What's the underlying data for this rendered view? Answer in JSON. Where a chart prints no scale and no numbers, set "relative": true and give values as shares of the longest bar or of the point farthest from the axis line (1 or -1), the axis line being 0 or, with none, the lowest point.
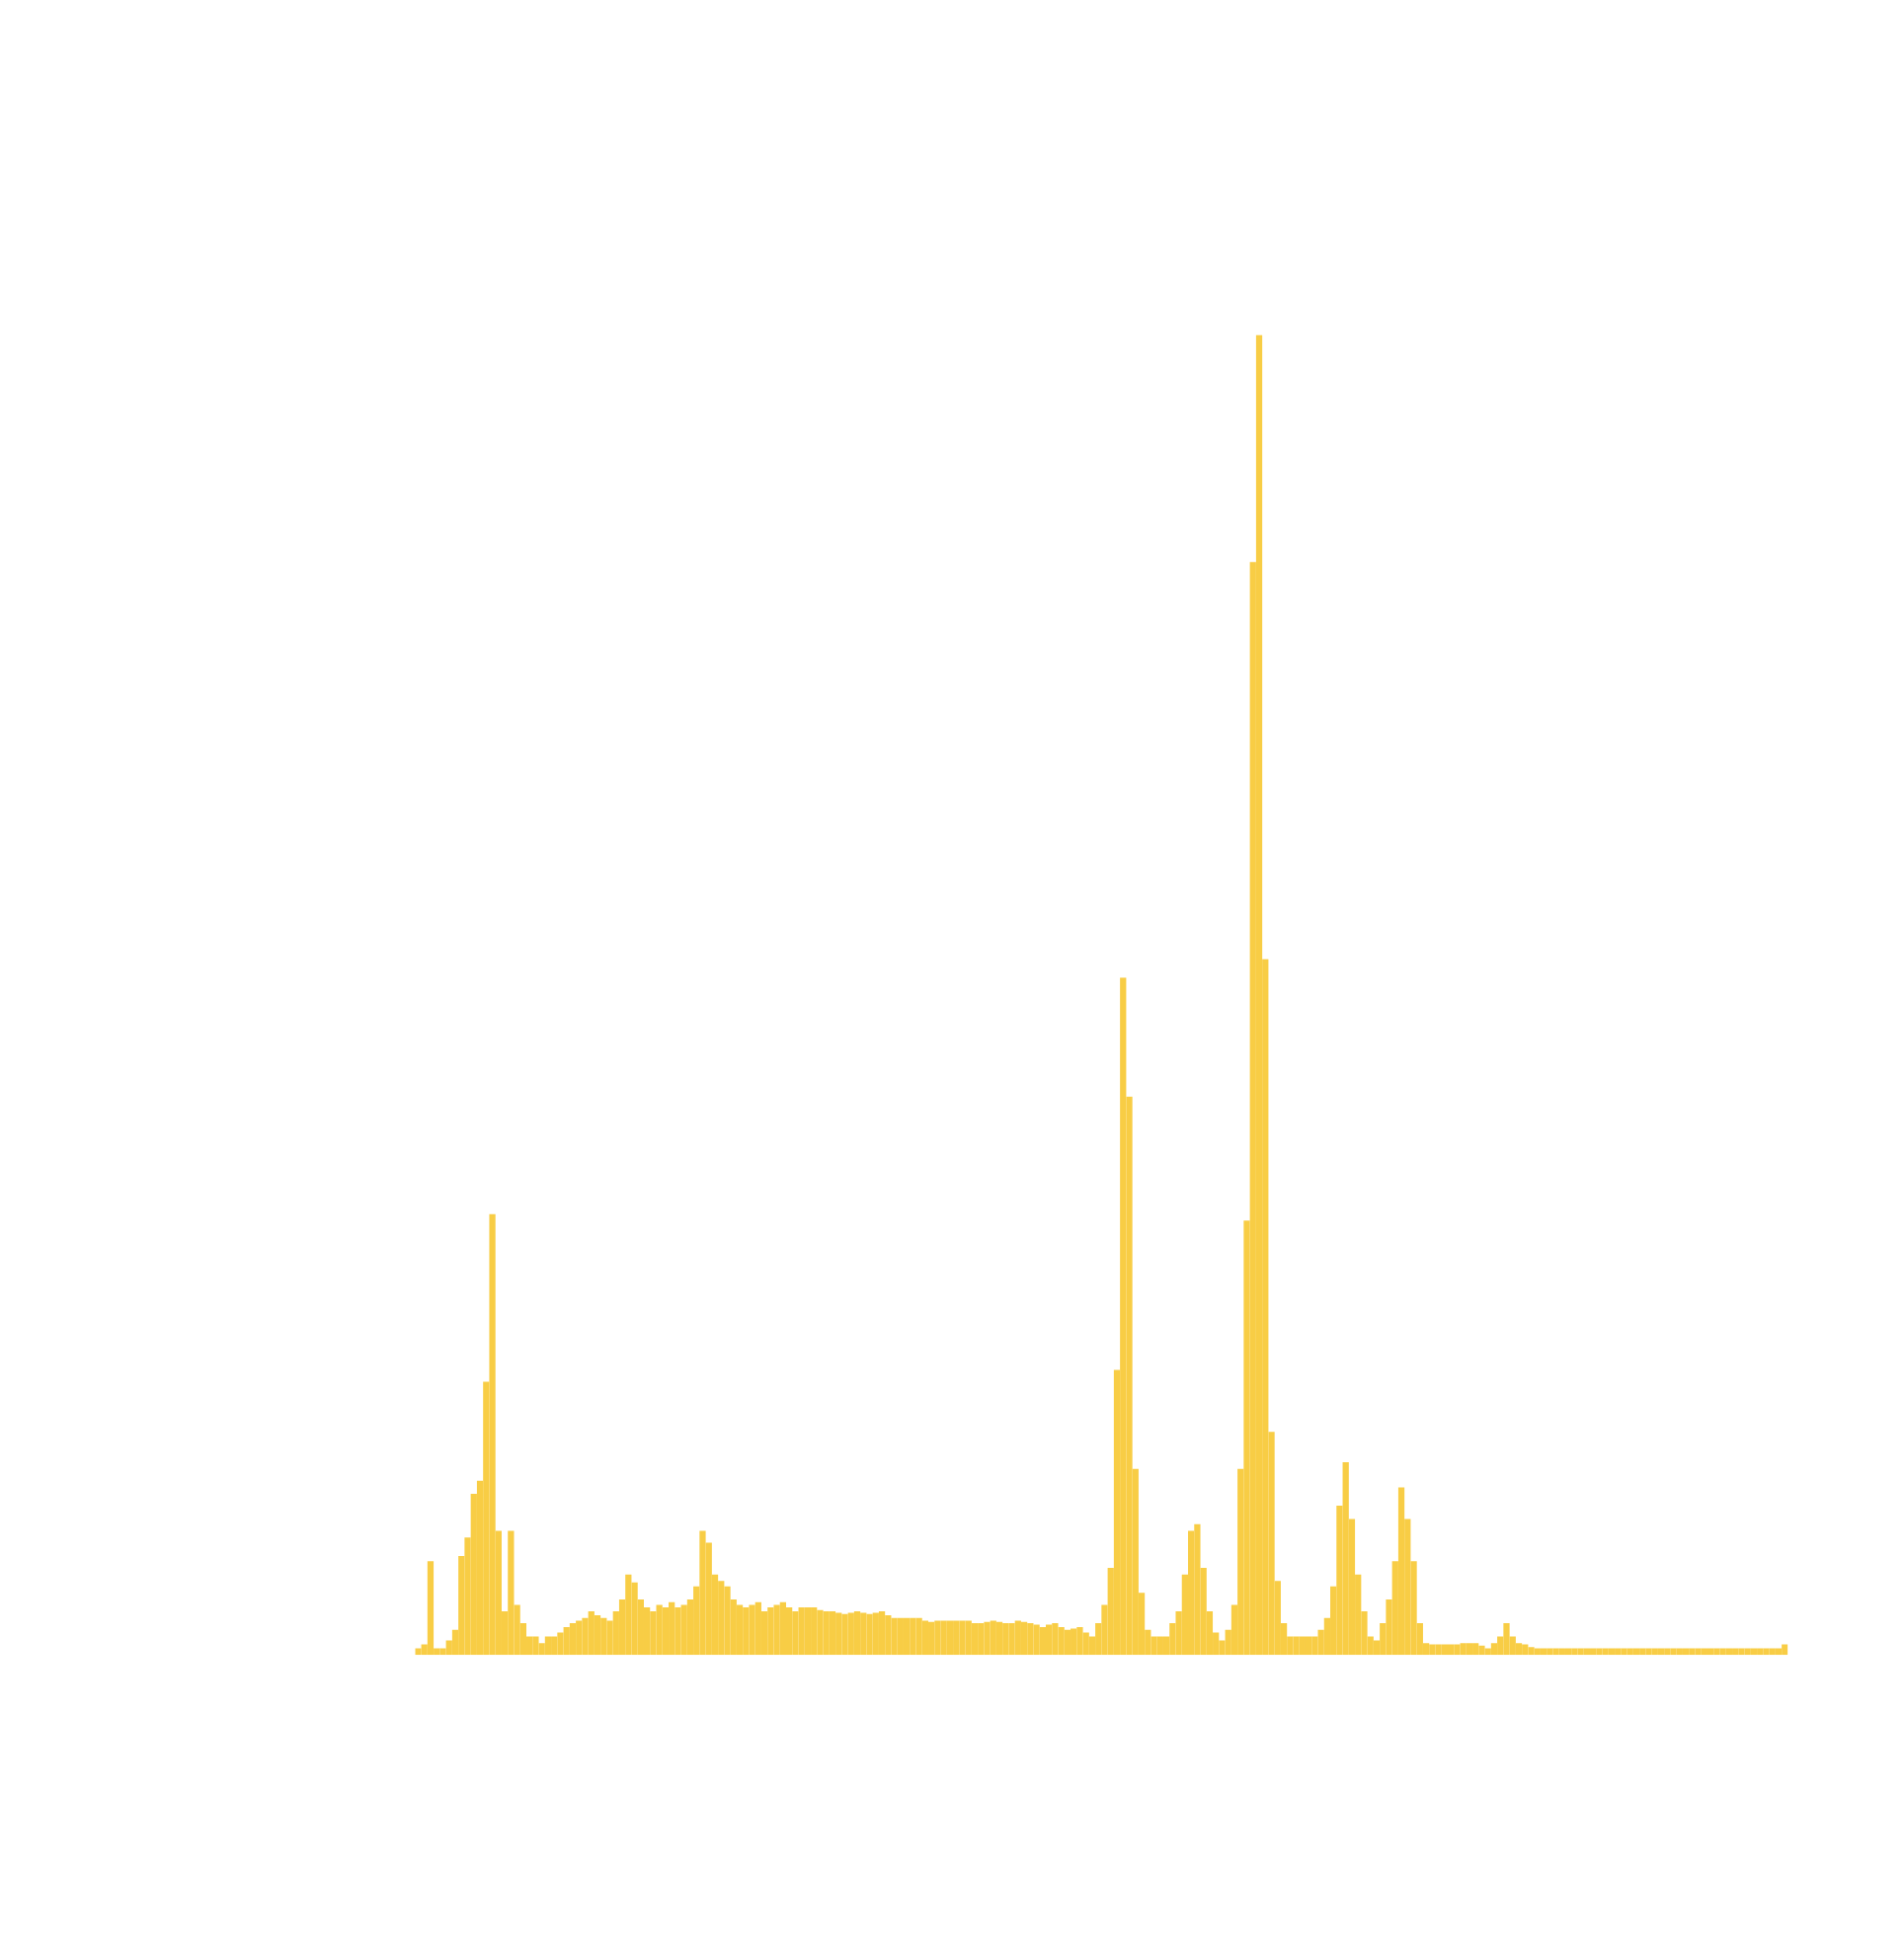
{
  "chart_data": {
    "type": "bar",
    "relative": true,
    "color": "#f8cd45",
    "categories": [
      null,
      null,
      null,
      null,
      null,
      null,
      null,
      null,
      null,
      null,
      null,
      null,
      null,
      null,
      null,
      null,
      null,
      null,
      null,
      null,
      null,
      null,
      null,
      null,
      null,
      null,
      null,
      null,
      null,
      null,
      null,
      null,
      null,
      null,
      null,
      null,
      null,
      null,
      null,
      null,
      null,
      null,
      null,
      null,
      null,
      null,
      null,
      null,
      null,
      null,
      null,
      null,
      null,
      null,
      null,
      null,
      null,
      null,
      null,
      null,
      null,
      null,
      null,
      null,
      null,
      null,
      null,
      null,
      null,
      null,
      null,
      null,
      null,
      null,
      null,
      null,
      null,
      null,
      null,
      null,
      null,
      null,
      null,
      null,
      null,
      null,
      null,
      null,
      null,
      null,
      null,
      null,
      null,
      null,
      null,
      null,
      null,
      null,
      null,
      null,
      null,
      null,
      null,
      null,
      null,
      null,
      null,
      null,
      null,
      null,
      null,
      null,
      null,
      null,
      null,
      null,
      null,
      null,
      null,
      null,
      null,
      null,
      null,
      null,
      null,
      null,
      null,
      null,
      null,
      null,
      null,
      null,
      null,
      null,
      null,
      null,
      null,
      null,
      null,
      null,
      null,
      null,
      null,
      null,
      null,
      null,
      null,
      null,
      null,
      null,
      null,
      null,
      null,
      null,
      null,
      null,
      null,
      null,
      null,
      null,
      null,
      null,
      null,
      null,
      null,
      null,
      null,
      null,
      null,
      null,
      null,
      null,
      null,
      null,
      null,
      null,
      null,
      null,
      null,
      null,
      null,
      null,
      null,
      null,
      null,
      null,
      null,
      null,
      null,
      null,
      null,
      null,
      null,
      null,
      null,
      null,
      null,
      null,
      null,
      null,
      null,
      null,
      null,
      null,
      null,
      null,
      null,
      null,
      null,
      null,
      null,
      null,
      null,
      null,
      null,
      null,
      null,
      null,
      null,
      null,
      null,
      null
    ],
    "values": [
      0.005,
      0.008,
      0.071,
      0.005,
      0.005,
      0.011,
      0.019,
      0.075,
      0.089,
      0.122,
      0.132,
      0.207,
      0.334,
      0.094,
      0.033,
      0.094,
      0.038,
      0.024,
      0.014,
      0.014,
      0.009,
      0.014,
      0.014,
      0.017,
      0.021,
      0.024,
      0.026,
      0.028,
      0.033,
      0.03,
      0.028,
      0.026,
      0.033,
      0.042,
      0.061,
      0.055,
      0.042,
      0.036,
      0.033,
      0.038,
      0.036,
      0.04,
      0.036,
      0.038,
      0.042,
      0.052,
      0.094,
      0.085,
      0.061,
      0.056,
      0.052,
      0.042,
      0.038,
      0.036,
      0.038,
      0.04,
      0.033,
      0.036,
      0.038,
      0.04,
      0.036,
      0.033,
      0.036,
      0.036,
      0.036,
      0.034,
      0.033,
      0.033,
      0.032,
      0.031,
      0.032,
      0.033,
      0.032,
      0.031,
      0.032,
      0.033,
      0.03,
      0.028,
      0.028,
      0.028,
      0.028,
      0.028,
      0.026,
      0.025,
      0.026,
      0.026,
      0.026,
      0.026,
      0.026,
      0.026,
      0.024,
      0.024,
      0.025,
      0.026,
      0.025,
      0.024,
      0.024,
      0.026,
      0.025,
      0.024,
      0.023,
      0.021,
      0.023,
      0.024,
      0.021,
      0.019,
      0.02,
      0.021,
      0.017,
      0.014,
      0.024,
      0.038,
      0.066,
      0.216,
      0.513,
      0.423,
      0.141,
      0.047,
      0.019,
      0.014,
      0.014,
      0.014,
      0.024,
      0.033,
      0.061,
      0.094,
      0.099,
      0.066,
      0.033,
      0.017,
      0.011,
      0.019,
      0.038,
      0.141,
      0.329,
      0.828,
      1,
      0.527,
      0.169,
      0.056,
      0.024,
      0.014,
      0.014,
      0.014,
      0.014,
      0.014,
      0.019,
      0.028,
      0.052,
      0.113,
      0.146,
      0.103,
      0.061,
      0.033,
      0.014,
      0.011,
      0.024,
      0.042,
      0.071,
      0.127,
      0.103,
      0.071,
      0.024,
      0.009,
      0.008,
      0.008,
      0.008,
      0.008,
      0.008,
      0.009,
      0.009,
      0.009,
      0.007,
      0.005,
      0.009,
      0.014,
      0.024,
      0.014,
      0.009,
      0.008,
      0.006,
      0.005,
      0.005,
      0.005,
      0.005,
      0.005,
      0.005,
      0.005,
      0.005,
      0.005,
      0.005,
      0.005,
      0.005,
      0.005,
      0.005,
      0.005,
      0.005,
      0.005,
      0.005,
      0.005,
      0.005,
      0.005,
      0.005,
      0.005,
      0.005,
      0.005,
      0.005,
      0.005,
      0.005,
      0.005,
      0.005,
      0.005,
      0.005,
      0.005,
      0.005,
      0.005,
      0.005,
      0.005,
      0.005,
      0.005,
      0.005,
      0.008
    ]
  }
}
